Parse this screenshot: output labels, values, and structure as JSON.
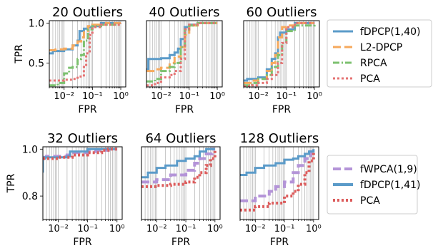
{
  "colors": {
    "fdpcp": "#5b9bc9",
    "l2dpcp": "#f6a95c",
    "rpca": "#7cc16f",
    "pca": "#e57373",
    "fwpca": "#b494d8",
    "pca_bottom": "#dc5c5c",
    "grid": "#b0b0b0"
  },
  "chart_data": [
    {
      "type": "line",
      "title": "20 Outliers",
      "xlabel": "FPR",
      "ylabel": "TPR",
      "x_scale": "log",
      "xlim": [
        0.003,
        1.5
      ],
      "ylim": [
        0.2,
        1.03
      ],
      "yticks": [
        0.5,
        1.0
      ],
      "ytick_labels": [
        "0.5",
        "1.0"
      ],
      "xticks": [
        0.01,
        0.1,
        1
      ],
      "xtick_labels": [
        "10⁻²",
        "10⁻¹",
        "10⁰"
      ],
      "grid_x": true,
      "legend_position": "right",
      "series": [
        {
          "name": "fDPCP(1,40)",
          "color_key": "fdpcp",
          "dash": "solid",
          "width": 3,
          "x": [
            0.003,
            0.004,
            0.01,
            0.02,
            0.03,
            0.035,
            0.05,
            0.07,
            0.1,
            0.2,
            0.5,
            1.0
          ],
          "y": [
            0.62,
            0.65,
            0.67,
            0.72,
            0.78,
            0.9,
            0.93,
            0.95,
            0.96,
            1.0,
            1.0,
            1.0
          ]
        },
        {
          "name": "L2-DPCP",
          "color_key": "l2dpcp",
          "dash": "dashed",
          "width": 3,
          "x": [
            0.003,
            0.005,
            0.01,
            0.02,
            0.03,
            0.04,
            0.05,
            0.07,
            0.1,
            0.3,
            1.0
          ],
          "y": [
            0.66,
            0.67,
            0.68,
            0.72,
            0.77,
            0.82,
            0.9,
            0.96,
            0.98,
            1.0,
            1.0
          ]
        },
        {
          "name": "RPCA",
          "color_key": "rpca",
          "dash": "dashdot",
          "width": 3,
          "x": [
            0.003,
            0.006,
            0.01,
            0.015,
            0.02,
            0.03,
            0.04,
            0.05,
            0.07,
            0.1,
            0.2,
            1.0
          ],
          "y": [
            0.22,
            0.25,
            0.37,
            0.44,
            0.45,
            0.55,
            0.6,
            0.78,
            0.92,
            0.96,
            0.98,
            1.0
          ]
        },
        {
          "name": "PCA",
          "color_key": "pca",
          "dash": "dotted",
          "width": 3,
          "x": [
            0.003,
            0.01,
            0.02,
            0.03,
            0.05,
            0.06,
            0.08,
            0.1,
            0.2,
            1.0
          ],
          "y": [
            0.28,
            0.29,
            0.3,
            0.33,
            0.45,
            0.62,
            0.85,
            0.95,
            0.98,
            1.0
          ]
        }
      ]
    },
    {
      "type": "line",
      "title": "40 Outliers",
      "xlabel": "FPR",
      "x_scale": "log",
      "xlim": [
        0.003,
        1.5
      ],
      "ylim": [
        0.2,
        1.03
      ],
      "xticks": [
        0.01,
        0.1,
        1
      ],
      "xtick_labels": [
        "10⁻²",
        "10⁻¹",
        "10⁰"
      ],
      "grid_x": true,
      "series": [
        {
          "name": "fDPCP(1,40)",
          "color_key": "fdpcp",
          "dash": "solid",
          "width": 3,
          "x": [
            0.003,
            0.0035,
            0.01,
            0.02,
            0.03,
            0.04,
            0.05,
            0.07,
            0.1,
            0.2,
            1.0
          ],
          "y": [
            0.42,
            0.55,
            0.56,
            0.6,
            0.63,
            0.68,
            0.8,
            0.95,
            0.98,
            1.0,
            1.0
          ]
        },
        {
          "name": "L2-DPCP",
          "color_key": "l2dpcp",
          "dash": "dashed",
          "width": 3,
          "x": [
            0.003,
            0.006,
            0.01,
            0.02,
            0.03,
            0.05,
            0.07,
            0.1,
            0.2,
            1.0
          ],
          "y": [
            0.4,
            0.42,
            0.44,
            0.5,
            0.58,
            0.7,
            0.85,
            0.97,
            1.0,
            1.0
          ]
        },
        {
          "name": "RPCA",
          "color_key": "rpca",
          "dash": "dashdot",
          "width": 3,
          "x": [
            0.003,
            0.006,
            0.01,
            0.02,
            0.03,
            0.05,
            0.07,
            0.1,
            0.2,
            1.0
          ],
          "y": [
            0.27,
            0.3,
            0.4,
            0.45,
            0.5,
            0.7,
            0.92,
            0.97,
            1.0,
            1.0
          ]
        },
        {
          "name": "PCA",
          "color_key": "pca",
          "dash": "dotted",
          "width": 3,
          "x": [
            0.003,
            0.006,
            0.01,
            0.02,
            0.03,
            0.05,
            0.07,
            0.1,
            0.2,
            1.0
          ],
          "y": [
            0.22,
            0.25,
            0.32,
            0.35,
            0.4,
            0.55,
            0.92,
            0.98,
            1.0,
            1.0
          ]
        }
      ]
    },
    {
      "type": "line",
      "title": "60 Outliers",
      "xlabel": "FPR",
      "x_scale": "log",
      "xlim": [
        0.003,
        1.5
      ],
      "ylim": [
        0.2,
        1.03
      ],
      "xticks": [
        0.01,
        0.1,
        1
      ],
      "xtick_labels": [
        "10⁻²",
        "10⁻¹",
        "10⁰"
      ],
      "grid_x": true,
      "series": [
        {
          "name": "fDPCP(1,40)",
          "color_key": "fdpcp",
          "dash": "solid",
          "width": 3,
          "x": [
            0.003,
            0.004,
            0.01,
            0.02,
            0.03,
            0.04,
            0.05,
            0.06,
            0.1,
            0.2,
            1.0
          ],
          "y": [
            0.28,
            0.3,
            0.32,
            0.42,
            0.55,
            0.62,
            0.82,
            0.88,
            0.92,
            1.0,
            1.0
          ]
        },
        {
          "name": "L2-DPCP",
          "color_key": "l2dpcp",
          "dash": "dashed",
          "width": 3,
          "x": [
            0.003,
            0.006,
            0.01,
            0.02,
            0.03,
            0.04,
            0.05,
            0.07,
            0.1,
            0.2,
            1.0
          ],
          "y": [
            0.25,
            0.28,
            0.3,
            0.4,
            0.5,
            0.6,
            0.82,
            0.95,
            0.97,
            1.0,
            1.0
          ]
        },
        {
          "name": "RPCA",
          "color_key": "rpca",
          "dash": "dashdot",
          "width": 3,
          "x": [
            0.003,
            0.006,
            0.01,
            0.02,
            0.03,
            0.05,
            0.07,
            0.1,
            0.2,
            1.0
          ],
          "y": [
            0.22,
            0.25,
            0.3,
            0.35,
            0.45,
            0.6,
            0.75,
            0.9,
            0.97,
            1.0
          ]
        },
        {
          "name": "PCA",
          "color_key": "pca",
          "dash": "dotted",
          "width": 3,
          "x": [
            0.003,
            0.006,
            0.01,
            0.02,
            0.03,
            0.05,
            0.07,
            0.1,
            0.2,
            1.0
          ],
          "y": [
            0.21,
            0.22,
            0.25,
            0.3,
            0.35,
            0.5,
            0.75,
            0.95,
            1.0,
            1.0
          ]
        }
      ]
    },
    {
      "type": "line",
      "title": "32 Outliers",
      "xlabel": "FPR",
      "ylabel": "TPR",
      "x_scale": "log",
      "xlim": [
        0.003,
        1.5
      ],
      "ylim": [
        0.7,
        1.01
      ],
      "yticks": [
        0.8,
        1.0
      ],
      "ytick_labels": [
        "0.8",
        "1.0"
      ],
      "xticks": [
        0.01,
        0.1,
        1
      ],
      "xtick_labels": [
        "10⁻²",
        "10⁻¹",
        "10⁰"
      ],
      "grid_x": true,
      "legend_position": "right",
      "series": [
        {
          "name": "fWPCA(1,9)",
          "color_key": "fwpca",
          "dash": "dashed",
          "width": 4,
          "x": [
            0.003,
            0.004,
            0.02,
            0.03,
            0.1,
            0.2,
            0.5,
            1.0
          ],
          "y": [
            0.965,
            0.97,
            0.975,
            0.985,
            0.99,
            0.995,
            1.0,
            1.0
          ]
        },
        {
          "name": "fDPCP(1,41)",
          "color_key": "fdpcp",
          "dash": "solid",
          "width": 3,
          "x": [
            0.003,
            0.003,
            0.0035,
            0.02,
            0.025,
            0.05,
            0.1,
            0.3,
            1.0
          ],
          "y": [
            0.9,
            0.96,
            0.965,
            0.97,
            0.99,
            0.99,
            1.0,
            1.0,
            1.0
          ]
        },
        {
          "name": "PCA",
          "color_key": "pca_bottom",
          "dash": "dotted",
          "width": 4,
          "x": [
            0.003,
            0.01,
            0.03,
            0.1,
            0.3,
            0.5,
            1.0
          ],
          "y": [
            0.96,
            0.965,
            0.975,
            0.985,
            0.995,
            1.0,
            1.0
          ]
        }
      ]
    },
    {
      "type": "line",
      "title": "64 Outliers",
      "xlabel": "FPR",
      "x_scale": "log",
      "xlim": [
        0.003,
        1.5
      ],
      "ylim": [
        0.7,
        1.01
      ],
      "xticks": [
        0.01,
        0.1,
        1
      ],
      "xtick_labels": [
        "10⁻²",
        "10⁻¹",
        "10⁰"
      ],
      "grid_x": true,
      "series": [
        {
          "name": "fWPCA(1,9)",
          "color_key": "fwpca",
          "dash": "dashed",
          "width": 4,
          "x": [
            0.003,
            0.01,
            0.03,
            0.1,
            0.2,
            0.3,
            0.5,
            0.8,
            1.0
          ],
          "y": [
            0.86,
            0.87,
            0.89,
            0.91,
            0.94,
            0.96,
            0.98,
            1.0,
            1.0
          ]
        },
        {
          "name": "fDPCP(1,41)",
          "color_key": "fdpcp",
          "dash": "solid",
          "width": 3,
          "x": [
            0.003,
            0.005,
            0.01,
            0.02,
            0.05,
            0.1,
            0.2,
            0.3,
            0.5,
            1.0
          ],
          "y": [
            0.88,
            0.9,
            0.92,
            0.93,
            0.95,
            0.96,
            0.97,
            0.99,
            1.0,
            1.0
          ]
        },
        {
          "name": "PCA",
          "color_key": "pca_bottom",
          "dash": "dotted",
          "width": 4,
          "x": [
            0.003,
            0.01,
            0.03,
            0.1,
            0.2,
            0.3,
            0.5,
            0.7,
            1.0
          ],
          "y": [
            0.84,
            0.845,
            0.85,
            0.86,
            0.88,
            0.9,
            0.93,
            0.96,
            1.0
          ]
        }
      ]
    },
    {
      "type": "line",
      "title": "128 Outliers",
      "xlabel": "FPR",
      "x_scale": "log",
      "xlim": [
        0.003,
        1.5
      ],
      "ylim": [
        0.7,
        1.01
      ],
      "xticks": [
        0.01,
        0.1,
        1
      ],
      "xtick_labels": [
        "10⁻²",
        "10⁻¹",
        "10⁰"
      ],
      "grid_x": true,
      "series": [
        {
          "name": "fWPCA(1,9)",
          "color_key": "fwpca",
          "dash": "dashed",
          "width": 4,
          "x": [
            0.003,
            0.01,
            0.03,
            0.05,
            0.1,
            0.2,
            0.3,
            0.5,
            0.8,
            1.0
          ],
          "y": [
            0.78,
            0.8,
            0.82,
            0.84,
            0.86,
            0.9,
            0.93,
            0.96,
            0.99,
            1.0
          ]
        },
        {
          "name": "fDPCP(1,41)",
          "color_key": "fdpcp",
          "dash": "solid",
          "width": 3,
          "x": [
            0.003,
            0.005,
            0.01,
            0.02,
            0.05,
            0.1,
            0.2,
            0.3,
            0.5,
            0.7,
            1.0
          ],
          "y": [
            0.89,
            0.9,
            0.92,
            0.93,
            0.94,
            0.955,
            0.96,
            0.97,
            0.98,
            0.99,
            1.0
          ]
        },
        {
          "name": "PCA",
          "color_key": "pca_bottom",
          "dash": "dotted",
          "width": 4,
          "x": [
            0.003,
            0.01,
            0.03,
            0.1,
            0.2,
            0.3,
            0.5,
            0.7,
            1.0
          ],
          "y": [
            0.74,
            0.755,
            0.77,
            0.8,
            0.82,
            0.85,
            0.9,
            0.95,
            0.99
          ]
        }
      ]
    }
  ],
  "legends": [
    {
      "entries": [
        {
          "label": "fDPCP(1,40)",
          "color_key": "fdpcp",
          "dash": "solid"
        },
        {
          "label": "L2-DPCP",
          "color_key": "l2dpcp",
          "dash": "dashed"
        },
        {
          "label": "RPCA",
          "color_key": "rpca",
          "dash": "dashdot"
        },
        {
          "label": "PCA",
          "color_key": "pca",
          "dash": "dotted"
        }
      ]
    },
    {
      "entries": [
        {
          "label": "fWPCA(1,9)",
          "color_key": "fwpca",
          "dash": "dashed"
        },
        {
          "label": "fDPCP(1,41)",
          "color_key": "fdpcp",
          "dash": "solid"
        },
        {
          "label": "PCA",
          "color_key": "pca_bottom",
          "dash": "dotted"
        }
      ]
    }
  ]
}
